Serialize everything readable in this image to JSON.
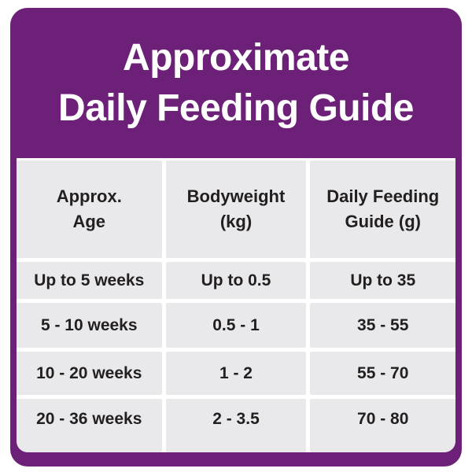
{
  "colors": {
    "card_purple": "#6D2077",
    "cell_gray": "#E9E8EA",
    "text_dark": "#231F20",
    "title_white": "#FFFFFF",
    "page_background": "#FFFFFF"
  },
  "header": {
    "title_line1": "Approximate",
    "title_line2": "Daily Feeding Guide"
  },
  "table": {
    "column_labels": [
      "Approx.\nAge",
      "Bodyweight\n(kg)",
      "Daily Feeding\nGuide (g)"
    ]
  },
  "chart_data": {
    "type": "table",
    "title": "Approximate Daily Feeding Guide",
    "columns": [
      "Approx. Age",
      "Bodyweight (kg)",
      "Daily Feeding Guide (g)"
    ],
    "rows": [
      [
        "Up to 5 weeks",
        "Up to 0.5",
        "Up to 35"
      ],
      [
        "5 - 10 weeks",
        "0.5 - 1",
        "35 - 55"
      ],
      [
        "10 - 20 weeks",
        "1 - 2",
        "55 - 70"
      ],
      [
        "20 - 36 weeks",
        "2 - 3.5",
        "70 - 80"
      ]
    ],
    "layout": {
      "header_position": "top",
      "grid": "white gutters between gray cells",
      "card_shape": "rounded rectangle"
    }
  }
}
